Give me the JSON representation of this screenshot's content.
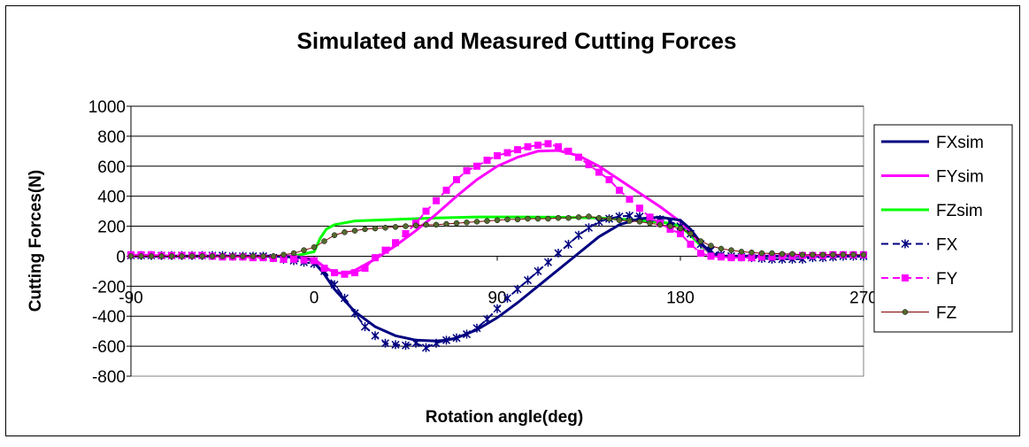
{
  "chart_data": {
    "type": "line",
    "title": "Simulated and Measured Cutting Forces",
    "xlabel": "Rotation angle(deg)",
    "ylabel": "Cutting Forces(N)",
    "xlim": [
      -90,
      270
    ],
    "ylim": [
      -800,
      1000
    ],
    "x_ticks": [
      "-90",
      "0",
      "90",
      "180",
      "270"
    ],
    "y_ticks": [
      "1000",
      "800",
      "600",
      "400",
      "200",
      "0",
      "-200",
      "-400",
      "-600",
      "-800"
    ],
    "grid": "horizontal",
    "legend_position": "right",
    "series": [
      {
        "name": "FXsim",
        "color": "#000080",
        "style": "solid",
        "x": [
          -90,
          -20,
          -5,
          0,
          5,
          10,
          20,
          30,
          40,
          50,
          60,
          65,
          70,
          80,
          90,
          100,
          110,
          120,
          130,
          140,
          150,
          160,
          170,
          180,
          185,
          190,
          195,
          200,
          270
        ],
        "y": [
          0,
          0,
          -10,
          -40,
          -120,
          -220,
          -370,
          -470,
          -530,
          -560,
          -565,
          -560,
          -545,
          -490,
          -410,
          -310,
          -200,
          -90,
          20,
          130,
          210,
          250,
          260,
          240,
          180,
          90,
          20,
          0,
          0
        ]
      },
      {
        "name": "FYsim",
        "color": "#FF00FF",
        "style": "solid",
        "x": [
          -90,
          -10,
          0,
          5,
          10,
          15,
          20,
          30,
          40,
          50,
          60,
          70,
          80,
          90,
          100,
          110,
          120,
          130,
          140,
          150,
          160,
          170,
          180,
          185,
          190,
          195,
          200,
          270
        ],
        "y": [
          0,
          0,
          -20,
          -70,
          -110,
          -115,
          -95,
          -20,
          70,
          170,
          280,
          400,
          510,
          600,
          660,
          700,
          705,
          670,
          600,
          510,
          420,
          330,
          230,
          160,
          80,
          20,
          0,
          0
        ]
      },
      {
        "name": "FZsim",
        "color": "#00FF00",
        "style": "solid",
        "x": [
          -90,
          -10,
          0,
          3,
          6,
          10,
          20,
          40,
          60,
          80,
          100,
          120,
          140,
          160,
          175,
          180,
          185,
          190,
          195,
          200,
          270
        ],
        "y": [
          0,
          0,
          30,
          120,
          180,
          210,
          235,
          245,
          255,
          262,
          262,
          260,
          255,
          240,
          220,
          200,
          140,
          70,
          20,
          0,
          0
        ]
      },
      {
        "name": "FX",
        "color": "#000080",
        "style": "dashed-asterisk",
        "x": [
          -90,
          -85,
          -80,
          -75,
          -70,
          -65,
          -60,
          -55,
          -50,
          -45,
          -40,
          -35,
          -30,
          -25,
          -20,
          -15,
          -10,
          -5,
          0,
          5,
          10,
          15,
          20,
          25,
          30,
          35,
          40,
          45,
          50,
          55,
          60,
          65,
          70,
          75,
          80,
          85,
          90,
          95,
          100,
          105,
          110,
          115,
          120,
          125,
          130,
          135,
          140,
          145,
          150,
          155,
          160,
          165,
          170,
          175,
          180,
          185,
          190,
          195,
          200,
          205,
          210,
          215,
          220,
          225,
          230,
          235,
          240,
          245,
          250,
          255,
          260,
          265,
          270
        ],
        "y": [
          5,
          5,
          5,
          5,
          5,
          5,
          5,
          5,
          5,
          5,
          0,
          0,
          0,
          0,
          -10,
          -20,
          -30,
          -40,
          -50,
          -100,
          -190,
          -280,
          -380,
          -470,
          -530,
          -580,
          -590,
          -595,
          -580,
          -610,
          -580,
          -560,
          -545,
          -520,
          -480,
          -420,
          -350,
          -280,
          -220,
          -160,
          -100,
          -40,
          20,
          80,
          140,
          190,
          230,
          250,
          265,
          270,
          265,
          255,
          245,
          230,
          200,
          150,
          80,
          40,
          10,
          0,
          -5,
          -10,
          -15,
          -20,
          -20,
          -20,
          -20,
          -10,
          -10,
          -5,
          0,
          0,
          0
        ]
      },
      {
        "name": "FY",
        "color": "#FF00FF",
        "style": "dashed-square",
        "x": [
          -90,
          -85,
          -80,
          -75,
          -70,
          -65,
          -60,
          -55,
          -50,
          -45,
          -40,
          -35,
          -30,
          -25,
          -20,
          -15,
          -10,
          -5,
          0,
          5,
          10,
          15,
          20,
          25,
          30,
          35,
          40,
          45,
          50,
          55,
          60,
          65,
          70,
          75,
          80,
          85,
          90,
          95,
          100,
          105,
          110,
          115,
          120,
          125,
          130,
          135,
          140,
          145,
          150,
          155,
          160,
          165,
          170,
          175,
          180,
          185,
          190,
          195,
          200,
          205,
          210,
          215,
          220,
          225,
          230,
          235,
          240,
          245,
          250,
          255,
          260,
          265,
          270
        ],
        "y": [
          10,
          10,
          10,
          5,
          5,
          5,
          5,
          5,
          0,
          -5,
          -5,
          -5,
          -10,
          -10,
          -15,
          -20,
          -20,
          -25,
          -30,
          -80,
          -110,
          -120,
          -110,
          -80,
          -10,
          40,
          90,
          150,
          220,
          300,
          370,
          440,
          510,
          570,
          600,
          640,
          670,
          690,
          710,
          730,
          740,
          750,
          730,
          700,
          660,
          610,
          560,
          510,
          440,
          380,
          320,
          260,
          220,
          180,
          150,
          80,
          20,
          0,
          -5,
          -10,
          -10,
          -10,
          -5,
          -5,
          0,
          0,
          5,
          5,
          5,
          10,
          10,
          10,
          10
        ]
      },
      {
        "name": "FZ",
        "color": "#800000",
        "style": "line-circle",
        "x": [
          -90,
          -85,
          -80,
          -75,
          -70,
          -65,
          -60,
          -55,
          -50,
          -45,
          -40,
          -35,
          -30,
          -25,
          -20,
          -15,
          -10,
          -5,
          0,
          5,
          10,
          15,
          20,
          25,
          30,
          35,
          40,
          45,
          50,
          55,
          60,
          65,
          70,
          75,
          80,
          85,
          90,
          95,
          100,
          105,
          110,
          115,
          120,
          125,
          130,
          135,
          140,
          145,
          150,
          155,
          160,
          165,
          170,
          175,
          180,
          185,
          190,
          195,
          200,
          205,
          210,
          215,
          220,
          225,
          230,
          235,
          240,
          245,
          250,
          255,
          260,
          265,
          270
        ],
        "y": [
          0,
          0,
          0,
          0,
          0,
          0,
          0,
          0,
          0,
          0,
          0,
          0,
          0,
          0,
          0,
          10,
          20,
          40,
          60,
          100,
          140,
          160,
          170,
          180,
          185,
          190,
          195,
          200,
          205,
          210,
          210,
          215,
          220,
          225,
          230,
          235,
          240,
          245,
          245,
          250,
          250,
          250,
          255,
          255,
          260,
          265,
          255,
          250,
          240,
          235,
          230,
          220,
          210,
          200,
          185,
          150,
          100,
          70,
          50,
          40,
          30,
          25,
          20,
          20,
          15,
          15,
          10,
          10,
          10,
          10,
          10,
          10,
          10
        ]
      }
    ]
  }
}
